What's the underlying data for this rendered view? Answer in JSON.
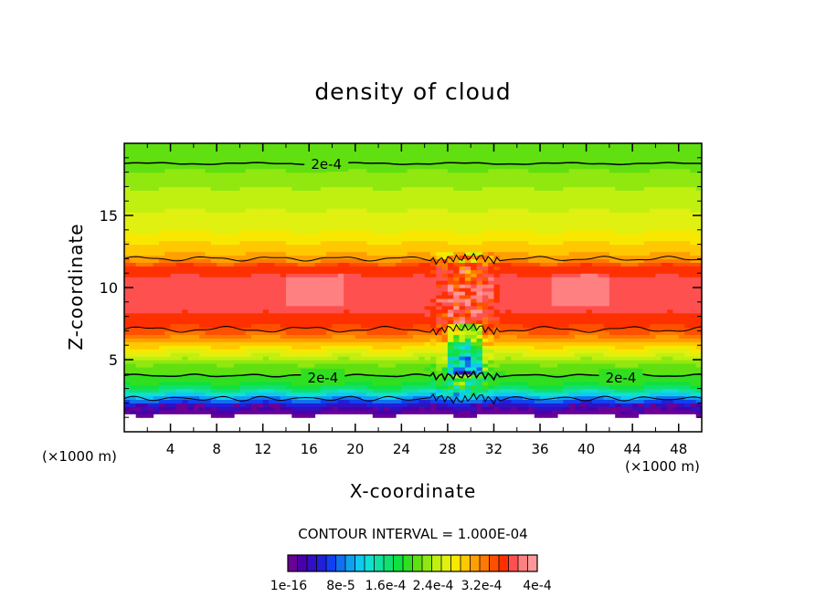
{
  "chart_data": {
    "type": "heatmap",
    "title": "density of cloud",
    "xlabel": "X-coordinate",
    "ylabel": "Z-coordinate",
    "x_unit_note": "(×1000 m)",
    "x_ticks": [
      4,
      8,
      12,
      16,
      20,
      24,
      28,
      32,
      36,
      40,
      44,
      48
    ],
    "y_ticks": [
      5,
      10,
      15
    ],
    "xlim": [
      0,
      50
    ],
    "ylim": [
      0,
      20
    ],
    "contour_interval_text": "CONTOUR INTERVAL = 1.000E-04",
    "contour_labels": [
      {
        "text": "2e-4",
        "x": 17.5,
        "z": 18.6
      },
      {
        "text": "2e-4",
        "x": 17.2,
        "z": 3.8
      },
      {
        "text": "2e-4",
        "x": 43.0,
        "z": 3.8
      }
    ],
    "vertical_profile": {
      "z": [
        1.2,
        1.8,
        2.2,
        2.6,
        3.0,
        3.5,
        4.0,
        4.6,
        5.2,
        5.8,
        6.4,
        7.0,
        7.8,
        9.0,
        10.5,
        11.5,
        12.0,
        13.0,
        14.0,
        15.0,
        16.0,
        17.0,
        18.0,
        18.6,
        19.6
      ],
      "value": [
        0.0,
        4e-05,
        8e-05,
        0.00012,
        0.00016,
        0.00019,
        0.0002,
        0.00021,
        0.00024,
        0.00027,
        0.0003,
        0.00033,
        0.00035,
        0.00036,
        0.00036,
        0.00034,
        0.0003,
        0.00028,
        0.00026,
        0.00025,
        0.00024,
        0.00023,
        0.00022,
        0.0002,
        0.0002
      ]
    },
    "colorbar": {
      "colors": [
        "#6a0096",
        "#4a00a8",
        "#3010c0",
        "#2020d8",
        "#1040f0",
        "#1070f0",
        "#10a0f0",
        "#10c8f0",
        "#10e0d0",
        "#10e0a0",
        "#10e070",
        "#10e040",
        "#30e020",
        "#60e010",
        "#90e810",
        "#c0f010",
        "#e0f010",
        "#f8e800",
        "#ffc800",
        "#ffa000",
        "#ff7800",
        "#ff5000",
        "#ff3000",
        "#ff5050",
        "#ff8080",
        "#ff9898"
      ],
      "labels": [
        "1e-16",
        "8e-5",
        "1.6e-4",
        "2.4e-4",
        "3.2e-4",
        "4e-4"
      ]
    }
  }
}
